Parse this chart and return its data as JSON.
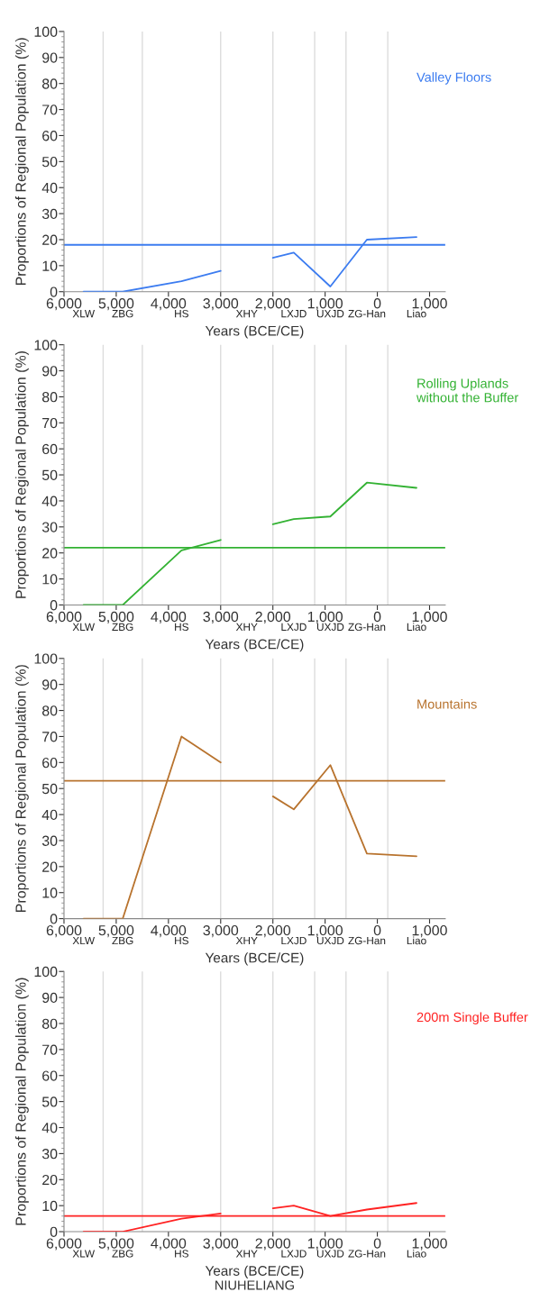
{
  "chart_data": [
    {
      "type": "line",
      "xlabel": "Years (BCE/CE)",
      "ylabel": "Proportions of Regional Population (%)",
      "x": [
        -5625,
        -4875,
        -3750,
        -3000,
        -2500,
        -2000,
        -1600,
        -900,
        -200,
        750
      ],
      "series": [
        {
          "name": "Valley Floors",
          "color": "#3c7cf0",
          "values": [
            0,
            0,
            4,
            8,
            null,
            13,
            15,
            2,
            20,
            21
          ]
        }
      ],
      "xlim": [
        -6000,
        1300
      ],
      "xticks": [
        {
          "value": -6000,
          "label": "6,000"
        },
        {
          "value": -5000,
          "label": "5,000"
        },
        {
          "value": -4000,
          "label": "4,000"
        },
        {
          "value": -3000,
          "label": "3,000"
        },
        {
          "value": -2000,
          "label": "2,000"
        },
        {
          "value": -1000,
          "label": "1,000"
        },
        0,
        {
          "value": 1000,
          "label": "1,000"
        }
      ],
      "ylim": [
        0,
        100
      ],
      "yticks": [
        0,
        10,
        20,
        30,
        40,
        50,
        60,
        70,
        80,
        90,
        100
      ],
      "ref_lines": [
        {
          "axis": "x",
          "value": -5250,
          "color": "#dcdcdc"
        },
        {
          "axis": "x",
          "value": -4500,
          "color": "#dcdcdc"
        },
        {
          "axis": "x",
          "value": -3000,
          "color": "#dcdcdc"
        },
        {
          "axis": "x",
          "value": -2000,
          "color": "#dcdcdc"
        },
        {
          "axis": "x",
          "value": -1200,
          "color": "#dcdcdc"
        },
        {
          "axis": "x",
          "value": -600,
          "color": "#dcdcdc"
        },
        {
          "axis": "x",
          "value": 200,
          "color": "#dcdcdc"
        },
        {
          "axis": "y",
          "value": 18,
          "color": "#3c7cf0"
        }
      ],
      "annotations": [
        "XLW",
        "ZBG",
        "HS",
        "XHY",
        "LXJD",
        "UXJD",
        "ZG-Han",
        "Liao"
      ]
    },
    {
      "type": "line",
      "xlabel": "Years (BCE/CE)",
      "ylabel": "Proportions of Regional Population (%)",
      "x": [
        -5625,
        -4875,
        -3750,
        -3000,
        -2500,
        -2000,
        -1600,
        -900,
        -200,
        750
      ],
      "series": [
        {
          "name": "Rolling Uplands\nwithout the Buffer",
          "color": "#33b233",
          "values": [
            0,
            0,
            21,
            25,
            null,
            31,
            33,
            34,
            47,
            45
          ]
        }
      ],
      "xlim": [
        -6000,
        1300
      ],
      "xticks": [
        {
          "value": -6000,
          "label": "6,000"
        },
        {
          "value": -5000,
          "label": "5,000"
        },
        {
          "value": -4000,
          "label": "4,000"
        },
        {
          "value": -3000,
          "label": "3,000"
        },
        {
          "value": -2000,
          "label": "2,000"
        },
        {
          "value": -1000,
          "label": "1,000"
        },
        0,
        {
          "value": 1000,
          "label": "1,000"
        }
      ],
      "ylim": [
        0,
        100
      ],
      "yticks": [
        0,
        10,
        20,
        30,
        40,
        50,
        60,
        70,
        80,
        90,
        100
      ],
      "ref_lines": [
        {
          "axis": "x",
          "value": -5250,
          "color": "#dcdcdc"
        },
        {
          "axis": "x",
          "value": -4500,
          "color": "#dcdcdc"
        },
        {
          "axis": "x",
          "value": -3000,
          "color": "#dcdcdc"
        },
        {
          "axis": "x",
          "value": -2000,
          "color": "#dcdcdc"
        },
        {
          "axis": "x",
          "value": -1200,
          "color": "#dcdcdc"
        },
        {
          "axis": "x",
          "value": -600,
          "color": "#dcdcdc"
        },
        {
          "axis": "x",
          "value": 200,
          "color": "#dcdcdc"
        },
        {
          "axis": "y",
          "value": 22,
          "color": "#33b233"
        }
      ],
      "annotations": [
        "XLW",
        "ZBG",
        "HS",
        "XHY",
        "LXJD",
        "UXJD",
        "ZG-Han",
        "Liao"
      ]
    },
    {
      "type": "line",
      "xlabel": "Years (BCE/CE)",
      "ylabel": "Proportions of Regional Population (%)",
      "x": [
        -5625,
        -4875,
        -3750,
        -3000,
        -2500,
        -2000,
        -1600,
        -900,
        -200,
        750
      ],
      "series": [
        {
          "name": "Mountains",
          "color": "#b8732e",
          "values": [
            0,
            0,
            70,
            60,
            null,
            47,
            42,
            59,
            25,
            24
          ]
        }
      ],
      "xlim": [
        -6000,
        1300
      ],
      "xticks": [
        {
          "value": -6000,
          "label": "6,000"
        },
        {
          "value": -5000,
          "label": "5,000"
        },
        {
          "value": -4000,
          "label": "4,000"
        },
        {
          "value": -3000,
          "label": "3,000"
        },
        {
          "value": -2000,
          "label": "2,000"
        },
        {
          "value": -1000,
          "label": "1,000"
        },
        0,
        {
          "value": 1000,
          "label": "1,000"
        }
      ],
      "ylim": [
        0,
        100
      ],
      "yticks": [
        0,
        10,
        20,
        30,
        40,
        50,
        60,
        70,
        80,
        90,
        100
      ],
      "ref_lines": [
        {
          "axis": "x",
          "value": -5250,
          "color": "#dcdcdc"
        },
        {
          "axis": "x",
          "value": -4500,
          "color": "#dcdcdc"
        },
        {
          "axis": "x",
          "value": -3000,
          "color": "#dcdcdc"
        },
        {
          "axis": "x",
          "value": -2000,
          "color": "#dcdcdc"
        },
        {
          "axis": "x",
          "value": -1200,
          "color": "#dcdcdc"
        },
        {
          "axis": "x",
          "value": -600,
          "color": "#dcdcdc"
        },
        {
          "axis": "x",
          "value": 200,
          "color": "#dcdcdc"
        },
        {
          "axis": "y",
          "value": 53,
          "color": "#b8732e"
        }
      ],
      "annotations": [
        "XLW",
        "ZBG",
        "HS",
        "XHY",
        "LXJD",
        "UXJD",
        "ZG-Han",
        "Liao"
      ]
    },
    {
      "type": "line",
      "xlabel": "Years (BCE/CE)",
      "ylabel": "Proportions of Regional Population (%)",
      "x": [
        -5625,
        -4875,
        -3750,
        -3000,
        -2500,
        -2000,
        -1600,
        -900,
        -200,
        750
      ],
      "series": [
        {
          "name": "200m Single Buffer",
          "color": "#ff2222",
          "values": [
            0,
            0,
            5,
            7,
            null,
            9,
            10,
            6,
            8.5,
            11
          ]
        }
      ],
      "xlim": [
        -6000,
        1300
      ],
      "xticks": [
        {
          "value": -6000,
          "label": "6,000"
        },
        {
          "value": -5000,
          "label": "5,000"
        },
        {
          "value": -4000,
          "label": "4,000"
        },
        {
          "value": -3000,
          "label": "3,000"
        },
        {
          "value": -2000,
          "label": "2,000"
        },
        {
          "value": -1000,
          "label": "1,000"
        },
        0,
        {
          "value": 1000,
          "label": "1,000"
        }
      ],
      "ylim": [
        0,
        100
      ],
      "yticks": [
        0,
        10,
        20,
        30,
        40,
        50,
        60,
        70,
        80,
        90,
        100
      ],
      "ref_lines": [
        {
          "axis": "x",
          "value": -5250,
          "color": "#dcdcdc"
        },
        {
          "axis": "x",
          "value": -4500,
          "color": "#dcdcdc"
        },
        {
          "axis": "x",
          "value": -3000,
          "color": "#dcdcdc"
        },
        {
          "axis": "x",
          "value": -2000,
          "color": "#dcdcdc"
        },
        {
          "axis": "x",
          "value": -1200,
          "color": "#dcdcdc"
        },
        {
          "axis": "x",
          "value": -600,
          "color": "#dcdcdc"
        },
        {
          "axis": "x",
          "value": 200,
          "color": "#dcdcdc"
        },
        {
          "axis": "y",
          "value": 6,
          "color": "#ff2222"
        }
      ],
      "annotations": [
        "XLW",
        "ZBG",
        "HS",
        "XHY",
        "LXJD",
        "UXJD",
        "ZG-Han",
        "Liao",
        "NIUHELIANG"
      ]
    }
  ]
}
